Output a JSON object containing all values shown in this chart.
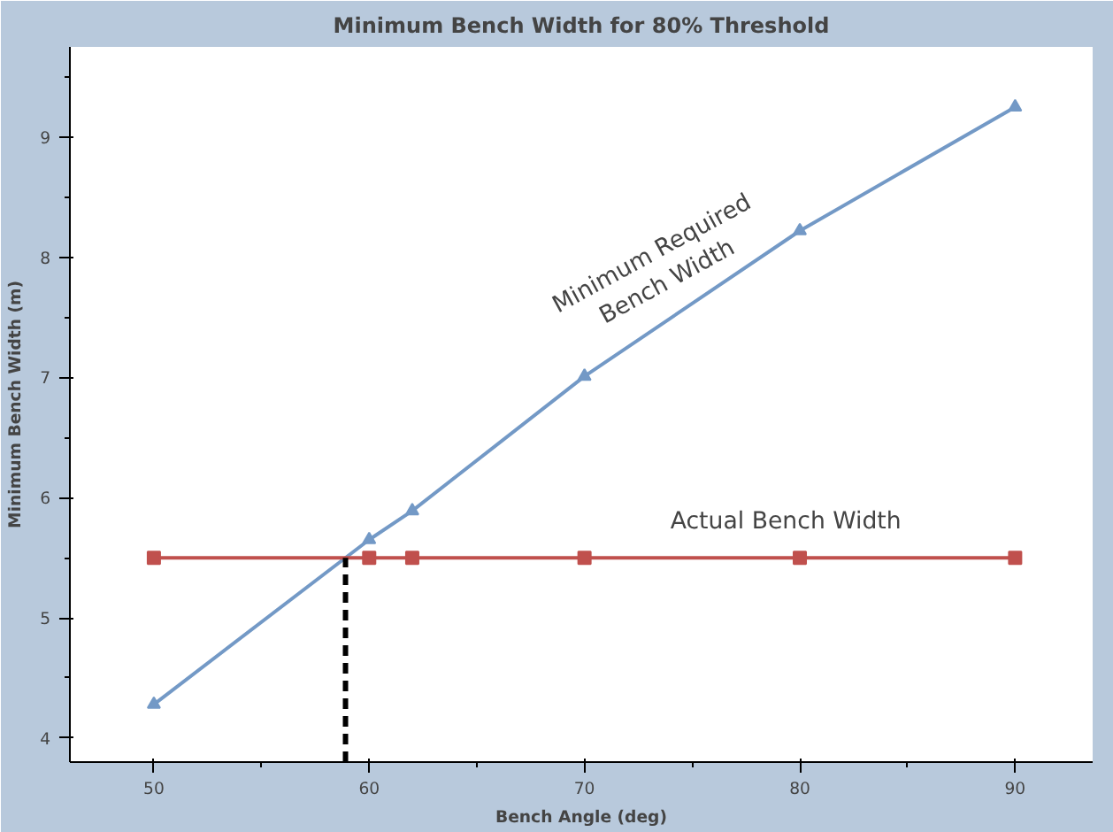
{
  "chart_data": {
    "type": "line",
    "title": "Minimum Bench Width for 80% Threshold",
    "xlabel": "Bench Angle (deg)",
    "ylabel": "Minimum Bench Width (m)",
    "xlim": [
      46.1,
      93.6
    ],
    "ylim": [
      3.8,
      9.75
    ],
    "xticks": [
      50,
      60,
      70,
      80,
      90
    ],
    "yticks": [
      4,
      5,
      6,
      7,
      8,
      9
    ],
    "grid": false,
    "series": [
      {
        "color": "#7399c6",
        "marker": "triangle",
        "x": [
          50,
          60,
          62,
          70,
          80,
          90
        ],
        "values": [
          4.28,
          5.65,
          5.89,
          7.01,
          8.22,
          9.25
        ]
      },
      {
        "color": "#c0504d",
        "marker": "square",
        "x": [
          50,
          60,
          62,
          70,
          80,
          90
        ],
        "values": [
          5.5,
          5.5,
          5.5,
          5.5,
          5.5,
          5.5
        ]
      },
      {
        "color": "#000000",
        "marker": "none",
        "line_style": "dashed",
        "x": [
          58.9,
          58.9
        ],
        "values": [
          3.8,
          5.5
        ]
      }
    ],
    "annotations": [
      "Minimum Required\nBench Width",
      "Actual Bench Width"
    ]
  }
}
